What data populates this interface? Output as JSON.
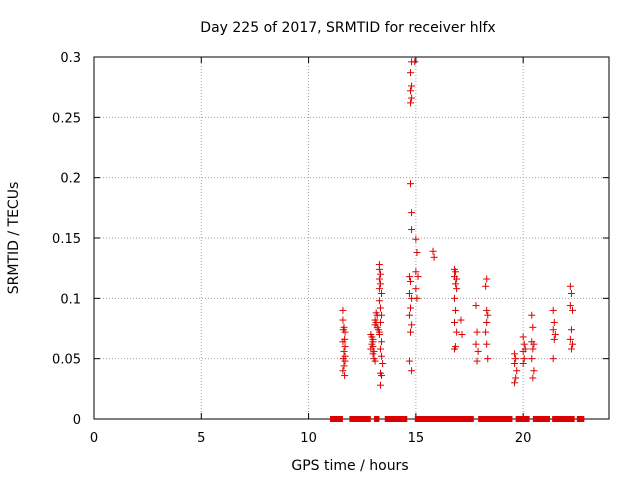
{
  "chart_data": {
    "type": "scatter",
    "title": "Day 225 of 2017, SRMTID for receiver hlfx",
    "xlabel": "GPS time / hours",
    "ylabel": "SRMTID / TECUs",
    "xlim": [
      0,
      24
    ],
    "ylim": [
      0,
      0.3
    ],
    "xticks": [
      0,
      5,
      10,
      15,
      20
    ],
    "yticks": [
      0,
      0.05,
      0.1,
      0.15,
      0.2,
      0.25,
      0.3
    ],
    "ytick_labels": [
      "0",
      "0.05",
      "0.1",
      "0.15",
      "0.2",
      "0.25",
      "0.3"
    ],
    "grid": true,
    "marker": "+",
    "color": "#dd0000",
    "series": [
      {
        "points": [
          [
            11.6,
            0.09
          ],
          [
            11.6,
            0.082
          ],
          [
            11.65,
            0.076
          ],
          [
            11.62,
            0.074
          ],
          [
            11.7,
            0.072
          ],
          [
            11.68,
            0.066
          ],
          [
            11.6,
            0.064
          ],
          [
            11.7,
            0.06
          ],
          [
            11.65,
            0.056
          ],
          [
            11.7,
            0.052
          ],
          [
            11.62,
            0.05
          ],
          [
            11.7,
            0.048
          ],
          [
            11.65,
            0.044
          ],
          [
            11.6,
            0.04
          ],
          [
            11.68,
            0.036
          ],
          [
            12.9,
            0.07
          ],
          [
            12.95,
            0.068
          ],
          [
            13.0,
            0.066
          ],
          [
            13.0,
            0.064
          ],
          [
            12.95,
            0.062
          ],
          [
            13.0,
            0.06
          ],
          [
            12.9,
            0.058
          ],
          [
            13.05,
            0.056
          ],
          [
            13.0,
            0.054
          ],
          [
            13.05,
            0.05
          ],
          [
            13.1,
            0.048
          ],
          [
            13.1,
            0.078
          ],
          [
            13.15,
            0.08
          ],
          [
            13.1,
            0.082
          ],
          [
            13.2,
            0.086
          ],
          [
            13.15,
            0.088
          ],
          [
            13.2,
            0.076
          ],
          [
            13.25,
            0.074
          ],
          [
            13.3,
            0.072
          ],
          [
            13.3,
            0.128
          ],
          [
            13.3,
            0.124
          ],
          [
            13.35,
            0.12
          ],
          [
            13.3,
            0.116
          ],
          [
            13.35,
            0.112
          ],
          [
            13.3,
            0.108
          ],
          [
            13.4,
            0.104
          ],
          [
            13.3,
            0.098
          ],
          [
            13.35,
            0.092
          ],
          [
            13.4,
            0.086
          ],
          [
            13.35,
            0.08
          ],
          [
            13.3,
            0.07
          ],
          [
            13.4,
            0.064
          ],
          [
            13.35,
            0.058
          ],
          [
            13.4,
            0.052
          ],
          [
            13.45,
            0.046
          ],
          [
            13.35,
            0.038
          ],
          [
            13.4,
            0.036
          ],
          [
            13.35,
            0.028
          ],
          [
            14.7,
            0.118
          ],
          [
            14.75,
            0.114
          ],
          [
            14.7,
            0.104
          ],
          [
            14.8,
            0.1
          ],
          [
            14.75,
            0.092
          ],
          [
            14.7,
            0.086
          ],
          [
            14.8,
            0.078
          ],
          [
            14.75,
            0.072
          ],
          [
            14.7,
            0.048
          ],
          [
            14.8,
            0.04
          ],
          [
            14.75,
            0.195
          ],
          [
            14.8,
            0.171
          ],
          [
            14.8,
            0.157
          ],
          [
            14.8,
            0.296
          ],
          [
            14.75,
            0.287
          ],
          [
            14.8,
            0.276
          ],
          [
            14.75,
            0.272
          ],
          [
            14.8,
            0.266
          ],
          [
            14.75,
            0.262
          ],
          [
            15.0,
            0.149
          ],
          [
            15.05,
            0.138
          ],
          [
            15.0,
            0.122
          ],
          [
            15.1,
            0.118
          ],
          [
            15.0,
            0.108
          ],
          [
            15.05,
            0.1
          ],
          [
            14.95,
            0.296
          ],
          [
            15.8,
            0.139
          ],
          [
            15.85,
            0.134
          ],
          [
            16.8,
            0.124
          ],
          [
            16.85,
            0.122
          ],
          [
            16.8,
            0.118
          ],
          [
            16.9,
            0.116
          ],
          [
            16.85,
            0.112
          ],
          [
            16.9,
            0.108
          ],
          [
            16.8,
            0.1
          ],
          [
            16.85,
            0.09
          ],
          [
            16.8,
            0.08
          ],
          [
            16.9,
            0.072
          ],
          [
            16.85,
            0.06
          ],
          [
            16.8,
            0.058
          ],
          [
            17.1,
            0.082
          ],
          [
            17.15,
            0.07
          ],
          [
            17.8,
            0.094
          ],
          [
            17.85,
            0.072
          ],
          [
            17.8,
            0.062
          ],
          [
            17.9,
            0.056
          ],
          [
            17.85,
            0.048
          ],
          [
            18.3,
            0.116
          ],
          [
            18.25,
            0.11
          ],
          [
            18.3,
            0.09
          ],
          [
            18.35,
            0.086
          ],
          [
            18.3,
            0.08
          ],
          [
            18.25,
            0.072
          ],
          [
            18.3,
            0.062
          ],
          [
            18.35,
            0.05
          ],
          [
            19.6,
            0.054
          ],
          [
            19.65,
            0.05
          ],
          [
            19.6,
            0.046
          ],
          [
            19.7,
            0.04
          ],
          [
            19.65,
            0.034
          ],
          [
            19.6,
            0.03
          ],
          [
            20.0,
            0.068
          ],
          [
            20.05,
            0.062
          ],
          [
            20.1,
            0.058
          ],
          [
            20.0,
            0.056
          ],
          [
            20.05,
            0.05
          ],
          [
            20.0,
            0.046
          ],
          [
            20.4,
            0.086
          ],
          [
            20.45,
            0.076
          ],
          [
            20.4,
            0.064
          ],
          [
            20.5,
            0.062
          ],
          [
            20.45,
            0.058
          ],
          [
            20.4,
            0.05
          ],
          [
            20.5,
            0.04
          ],
          [
            20.45,
            0.034
          ],
          [
            21.4,
            0.09
          ],
          [
            21.45,
            0.08
          ],
          [
            21.4,
            0.074
          ],
          [
            21.5,
            0.07
          ],
          [
            21.45,
            0.066
          ],
          [
            21.4,
            0.05
          ],
          [
            22.2,
            0.11
          ],
          [
            22.25,
            0.104
          ],
          [
            22.2,
            0.094
          ],
          [
            22.3,
            0.09
          ],
          [
            22.25,
            0.074
          ],
          [
            22.2,
            0.066
          ],
          [
            22.3,
            0.062
          ],
          [
            22.25,
            0.058
          ]
        ]
      }
    ],
    "baseline_segments": [
      [
        11.0,
        11.6
      ],
      [
        11.9,
        12.9
      ],
      [
        13.05,
        13.3
      ],
      [
        13.55,
        14.6
      ],
      [
        14.95,
        17.7
      ],
      [
        17.9,
        19.5
      ],
      [
        19.65,
        20.3
      ],
      [
        20.45,
        21.25
      ],
      [
        21.35,
        22.4
      ],
      [
        22.5,
        22.85
      ]
    ]
  }
}
